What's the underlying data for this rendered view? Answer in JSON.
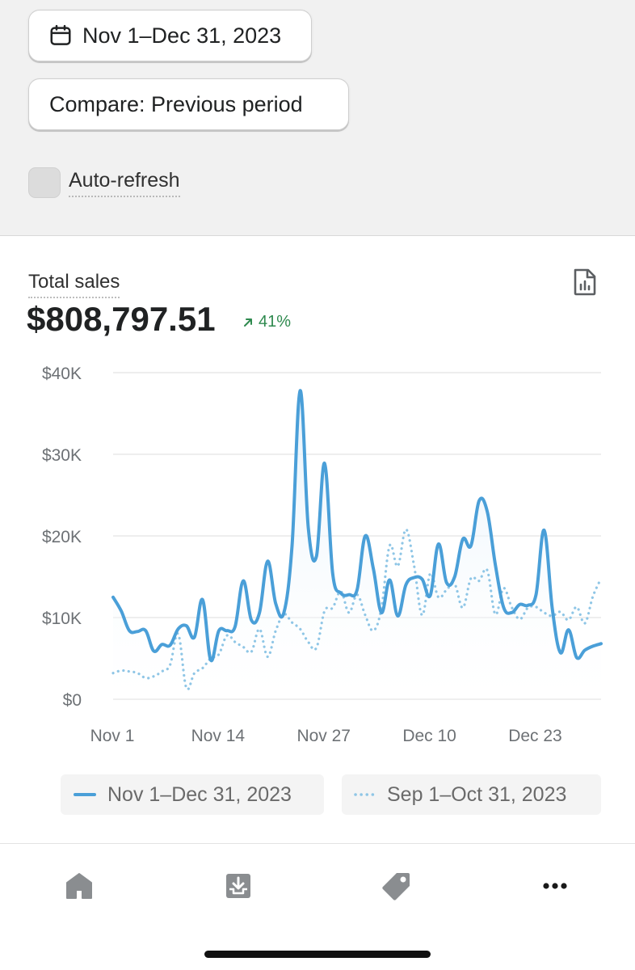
{
  "filters": {
    "date_range_label": "Nov 1–Dec 31, 2023",
    "compare_label": "Compare: Previous period",
    "auto_refresh_label": "Auto-refresh",
    "auto_refresh_checked": false
  },
  "metric": {
    "label": "Total sales",
    "value": "$808,797.51",
    "change": "41%",
    "change_direction": "up",
    "change_color": "#2f8a4f"
  },
  "chart_data": {
    "type": "line",
    "ylim": [
      0,
      40000
    ],
    "y_ticks": [
      "$40K",
      "$30K",
      "$20K",
      "$10K",
      "$0"
    ],
    "x_ticks": [
      "Nov 1",
      "Nov 14",
      "Nov 27",
      "Dec 10",
      "Dec 23"
    ],
    "series": [
      {
        "name": "Nov 1–Dec 31, 2023",
        "style": "solid",
        "color": "#4a9fd8",
        "values": [
          12500,
          10800,
          8400,
          8300,
          8400,
          5900,
          6700,
          6600,
          8600,
          9000,
          7600,
          12200,
          4800,
          8400,
          8400,
          8900,
          14500,
          9700,
          10600,
          16900,
          11700,
          10600,
          18800,
          37800,
          21000,
          17500,
          28900,
          15400,
          13000,
          12800,
          13400,
          20000,
          16000,
          10600,
          14600,
          10200,
          14000,
          14900,
          14700,
          12700,
          19000,
          14300,
          15000,
          19600,
          18800,
          24300,
          23000,
          16500,
          11300,
          10600,
          11600,
          11500,
          12800,
          20700,
          11100,
          5700,
          8500,
          5100,
          6000,
          6500,
          6800
        ]
      },
      {
        "name": "Sep 1–Oct 31, 2023",
        "style": "dotted",
        "color": "#8fc6e6",
        "values": [
          3200,
          3500,
          3400,
          3200,
          2600,
          2800,
          3400,
          4200,
          8000,
          1400,
          3200,
          3800,
          5000,
          5500,
          7800,
          7000,
          6400,
          5800,
          8600,
          5200,
          8400,
          10400,
          9400,
          8600,
          7000,
          6300,
          10800,
          11200,
          13200,
          10600,
          12800,
          10300,
          8400,
          11200,
          18800,
          16300,
          20800,
          16400,
          10300,
          15400,
          12500,
          13400,
          14100,
          11200,
          14800,
          14500,
          15800,
          10400,
          13600,
          11300,
          9800,
          11200,
          11300,
          10600,
          10200,
          10700,
          9700,
          11300,
          9300,
          12600,
          14800
        ]
      }
    ]
  },
  "tabs": [
    {
      "name": "home-icon"
    },
    {
      "name": "orders-inbox-icon"
    },
    {
      "name": "tag-icon"
    },
    {
      "name": "more-icon"
    }
  ]
}
